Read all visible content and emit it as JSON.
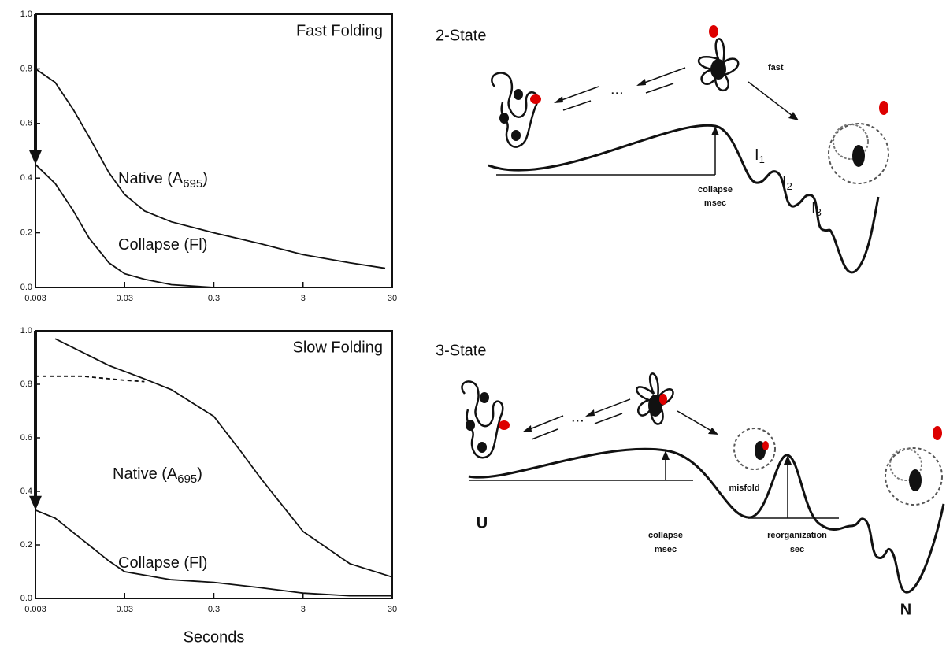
{
  "chart_data": [
    {
      "type": "line",
      "title": "Fast Folding",
      "xscale": "log",
      "xlim": [
        0.003,
        30
      ],
      "xticks": [
        0.003,
        0.03,
        0.3,
        3,
        30
      ],
      "ylim": [
        0,
        1
      ],
      "yticks": [
        {
          "value": 0,
          "label": "0.0"
        },
        0.2,
        0.4,
        0.6,
        0.8,
        {
          "value": 1,
          "label": "1.0"
        }
      ],
      "series": [
        {
          "label_parts": [
            "Native (A",
            "695",
            ")"
          ],
          "color": "#111111",
          "style": "solid",
          "x": [
            0.003,
            0.005,
            0.008,
            0.012,
            0.02,
            0.03,
            0.05,
            0.1,
            0.3,
            1,
            3,
            10,
            25
          ],
          "values": [
            0.8,
            0.75,
            0.65,
            0.55,
            0.42,
            0.34,
            0.28,
            0.24,
            0.2,
            0.16,
            0.12,
            0.09,
            0.07
          ]
        },
        {
          "label_parts": [
            "Collapse (Fl)"
          ],
          "color": "#111111",
          "style": "solid",
          "x": [
            0.003,
            0.005,
            0.008,
            0.012,
            0.02,
            0.03,
            0.05,
            0.1,
            0.3
          ],
          "values": [
            0.45,
            0.38,
            0.28,
            0.18,
            0.09,
            0.05,
            0.03,
            0.01,
            0.0
          ]
        }
      ]
    },
    {
      "type": "line",
      "title": "Slow Folding",
      "xscale": "log",
      "xlabel": "Seconds",
      "xlim": [
        0.003,
        30
      ],
      "xticks": [
        0.003,
        0.03,
        0.3,
        3,
        30
      ],
      "ylim": [
        0,
        1
      ],
      "yticks": [
        {
          "value": 0,
          "label": "0.0"
        },
        0.2,
        0.4,
        0.6,
        0.8,
        {
          "value": 1,
          "label": "1.0"
        }
      ],
      "series": [
        {
          "label_parts": [
            "Native (A",
            "695",
            ")"
          ],
          "color": "#111111",
          "style": "solid",
          "x": [
            0.005,
            0.01,
            0.02,
            0.05,
            0.1,
            0.3,
            0.6,
            1,
            3,
            10,
            30
          ],
          "values": [
            0.97,
            0.92,
            0.87,
            0.82,
            0.78,
            0.68,
            0.55,
            0.45,
            0.25,
            0.13,
            0.08
          ]
        },
        {
          "color": "#111111",
          "style": "dashed",
          "x": [
            0.003,
            0.01,
            0.03,
            0.05
          ],
          "values": [
            0.83,
            0.83,
            0.815,
            0.81
          ]
        },
        {
          "label_parts": [
            "Collapse (Fl)"
          ],
          "color": "#111111",
          "style": "solid",
          "x": [
            0.003,
            0.005,
            0.01,
            0.02,
            0.03,
            0.1,
            0.3,
            1,
            3,
            10,
            30
          ],
          "values": [
            0.33,
            0.3,
            0.22,
            0.14,
            0.1,
            0.07,
            0.06,
            0.04,
            0.02,
            0.01,
            0.01
          ]
        }
      ]
    }
  ],
  "diagrams": [
    {
      "title": "2-State",
      "fast": "fast",
      "dots": "...",
      "collapse": "collapse",
      "time": "msec",
      "intermediates": [
        [
          "I",
          "1"
        ],
        [
          "I",
          "2"
        ],
        [
          "I",
          "3"
        ]
      ]
    },
    {
      "title": "3-State",
      "dots": "...",
      "misfold": "misfold",
      "unfolded": "U",
      "collapse": "collapse",
      "time": "msec",
      "reorganization": "reorganization",
      "time2": "sec",
      "native": "N"
    }
  ]
}
